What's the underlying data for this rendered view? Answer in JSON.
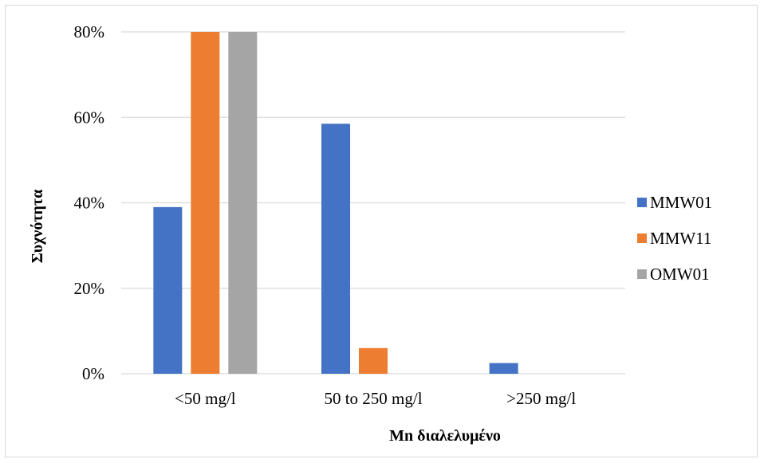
{
  "chart_data": {
    "type": "bar",
    "title": "",
    "xlabel": "Mn διαλελυμένο",
    "ylabel": "Συχνότητα",
    "categories": [
      "<50 mg/l",
      "50 to 250 mg/l",
      ">250 mg/l"
    ],
    "series": [
      {
        "name": "MMW01",
        "color": "#4472c4",
        "values": [
          0.39,
          0.585,
          0.025
        ]
      },
      {
        "name": "MMW11",
        "color": "#ed7d31",
        "values": [
          0.8,
          0.06,
          0.0
        ]
      },
      {
        "name": "OMW01",
        "color": "#a5a5a5",
        "values": [
          0.8,
          0.0,
          0.0
        ]
      }
    ],
    "ylim": [
      0,
      0.8
    ],
    "yticks": [
      0,
      0.2,
      0.4,
      0.6,
      0.8
    ],
    "ytick_labels": [
      "0%",
      "20%",
      "40%",
      "60%",
      "80%"
    ],
    "grid": true,
    "gridline_color": "#d9d9d9",
    "legend_position": "right"
  }
}
